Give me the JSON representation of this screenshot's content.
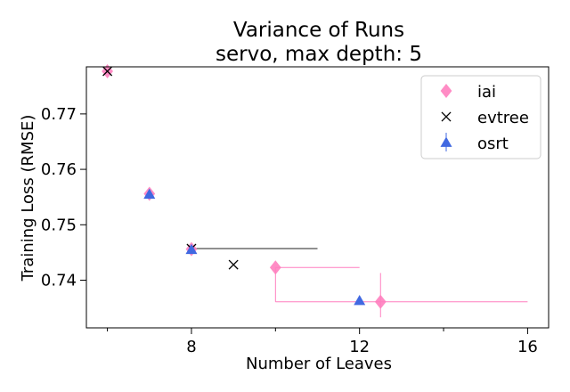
{
  "chart_data": {
    "type": "scatter",
    "title": "Variance of Runs",
    "subtitle": "servo, max depth: 5",
    "xlabel": "Number of Leaves",
    "ylabel": "Training Loss (RMSE)",
    "xlim": [
      5.5,
      16.5
    ],
    "ylim": [
      0.7314,
      0.7785
    ],
    "x_ticks": [
      {
        "value": 8,
        "label": "8"
      },
      {
        "value": 12,
        "label": "12"
      },
      {
        "value": 16,
        "label": "16"
      }
    ],
    "x_minor_ticks": [
      6,
      10,
      14
    ],
    "y_ticks": [
      {
        "value": 0.74,
        "label": "0.74"
      },
      {
        "value": 0.75,
        "label": "0.75"
      },
      {
        "value": 0.76,
        "label": "0.76"
      },
      {
        "value": 0.77,
        "label": "0.77"
      }
    ],
    "grid": false,
    "legend_position": "top-right",
    "series": [
      {
        "name": "iai",
        "marker": "diamond",
        "color": "#ff7fbf",
        "points": [
          {
            "x": 6,
            "y": 0.7777
          },
          {
            "x": 7,
            "y": 0.7556
          },
          {
            "x": 8,
            "y": 0.7456
          },
          {
            "x": 10,
            "y": 0.7423,
            "xerr": [
              0,
              2.0
            ],
            "yerr": [
              0.0062,
              0
            ]
          },
          {
            "x": 12.5,
            "y": 0.7361,
            "xerr": [
              2.5,
              3.5
            ],
            "yerr": [
              0.0028,
              0.0052
            ]
          }
        ]
      },
      {
        "name": "evtree",
        "marker": "x",
        "color": "#000000",
        "points": [
          {
            "x": 6,
            "y": 0.7777
          },
          {
            "x": 8,
            "y": 0.7457,
            "xerr": [
              0,
              3.0
            ]
          },
          {
            "x": 9,
            "y": 0.7428
          }
        ]
      },
      {
        "name": "osrt",
        "marker": "triangle",
        "color": "#4169e1",
        "points": [
          {
            "x": 7,
            "y": 0.7555
          },
          {
            "x": 8,
            "y": 0.7455
          },
          {
            "x": 12,
            "y": 0.7363
          }
        ]
      }
    ]
  }
}
